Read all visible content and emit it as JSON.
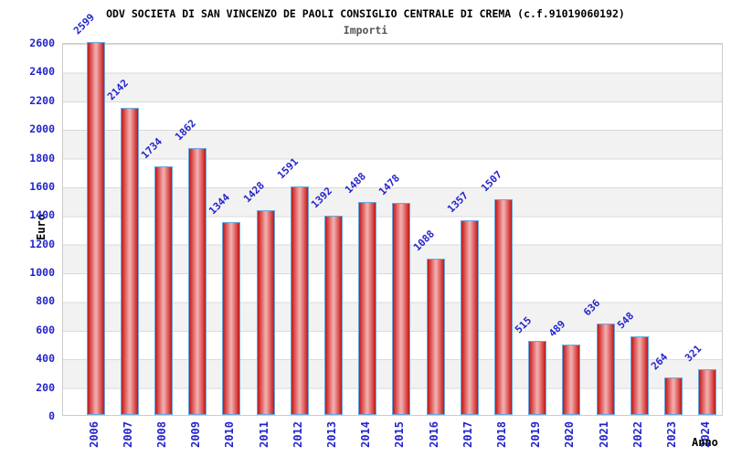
{
  "chart_data": {
    "type": "bar",
    "title": "ODV SOCIETA DI SAN VINCENZO DE PAOLI CONSIGLIO CENTRALE DI CREMA (c.f.91019060192)",
    "subtitle": "Importi",
    "xlabel": "Anno",
    "ylabel": "Euro",
    "categories": [
      "2006",
      "2007",
      "2008",
      "2009",
      "2010",
      "2011",
      "2012",
      "2013",
      "2014",
      "2015",
      "2016",
      "2017",
      "2018",
      "2019",
      "2020",
      "2021",
      "2022",
      "2023",
      "2024"
    ],
    "values": [
      2599,
      2142,
      1734,
      1862,
      1344,
      1428,
      1591,
      1392,
      1488,
      1478,
      1088,
      1357,
      1507,
      515,
      489,
      636,
      548,
      264,
      321
    ],
    "ylim": [
      0,
      2600
    ],
    "ytick_step": 200,
    "grid": "horizontal-bands-alternating",
    "legend": "none",
    "colors": {
      "bar_fill_dark": "#b81a1a",
      "bar_fill_light": "#f0abab",
      "bar_border": "#6aa7dd",
      "axis_label_blue": "#2424cc",
      "title_color": "#000000",
      "subtitle_color": "#555555",
      "band_gray": "#f2f2f2",
      "gridline": "#dadada"
    }
  }
}
